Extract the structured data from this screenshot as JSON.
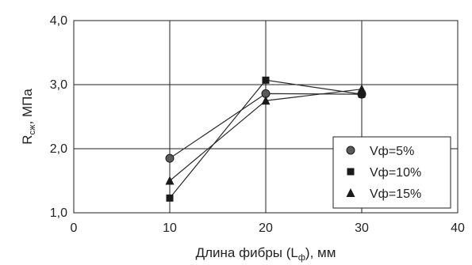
{
  "chart_data": {
    "type": "line",
    "xlabel": {
      "main": "Длина фибры (L",
      "sub": "ф",
      "tail": "), мм"
    },
    "ylabel": {
      "main": "R",
      "sub": "сж",
      "tail": ", МПа"
    },
    "xlim": [
      0,
      40
    ],
    "ylim": [
      1.0,
      4.0
    ],
    "xticks": [
      0,
      10,
      20,
      30,
      40
    ],
    "xtick_labels": [
      "0",
      "10",
      "20",
      "30",
      "40"
    ],
    "yticks": [
      1.0,
      2.0,
      3.0,
      4.0
    ],
    "ytick_labels": [
      "1,0",
      "2,0",
      "3,0",
      "4,0"
    ],
    "grid": true,
    "legend_position": "bottom-right",
    "series": [
      {
        "name": "Vф=5%",
        "marker": "circle",
        "color": "#4a4a4a",
        "points": [
          {
            "x": 10,
            "y": 1.85
          },
          {
            "x": 20,
            "y": 2.86
          },
          {
            "x": 30,
            "y": 2.85
          }
        ]
      },
      {
        "name": "Vф=10%",
        "marker": "square",
        "color": "#1a1a1a",
        "points": [
          {
            "x": 10,
            "y": 1.23
          },
          {
            "x": 20,
            "y": 3.07
          },
          {
            "x": 30,
            "y": 2.85
          }
        ]
      },
      {
        "name": "Vф=15%",
        "marker": "triangle",
        "color": "#1a1a1a",
        "points": [
          {
            "x": 10,
            "y": 1.5
          },
          {
            "x": 20,
            "y": 2.75
          },
          {
            "x": 30,
            "y": 2.93
          }
        ]
      }
    ]
  }
}
